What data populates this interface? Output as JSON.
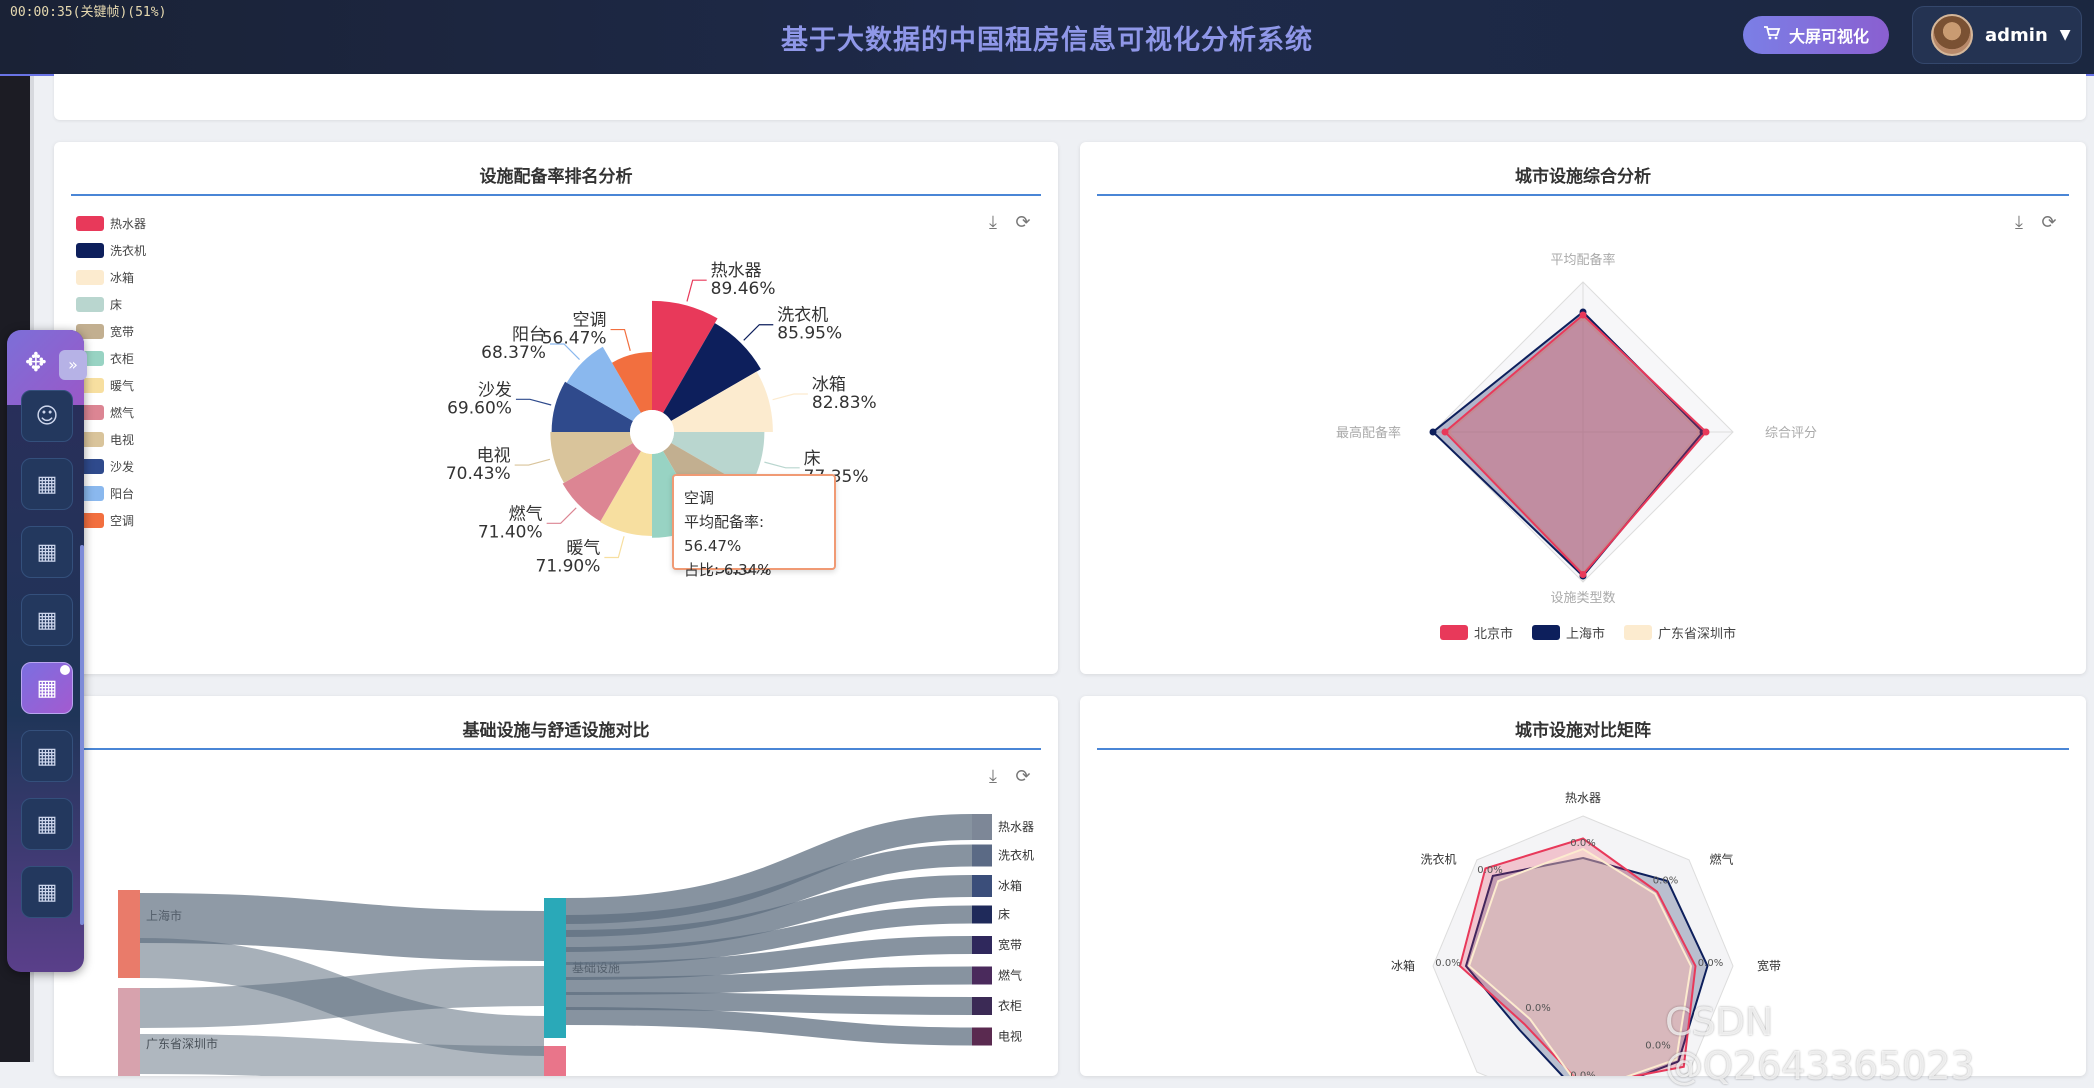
{
  "header": {
    "recording_status": "00:00:35(关键帧)(51%)",
    "title": "基于大数据的中国租房信息可视化分析系统",
    "bigscreen_button": "大屏可视化",
    "username": "admin"
  },
  "cards": {
    "facility_rank": {
      "title": "设施配备率排名分析"
    },
    "city_radar": {
      "title": "城市设施综合分析"
    },
    "basic_comfort": {
      "title": "基础设施与舒适设施对比"
    },
    "city_matrix": {
      "title": "城市设施对比矩阵"
    }
  },
  "tooltip": {
    "name": "空调",
    "avg_rate": "平均配备率: 56.47%",
    "share": "占比: 6.34%"
  },
  "chart_data": [
    {
      "type": "pie",
      "title": "设施配备率排名分析",
      "legend_position": "left",
      "slices": [
        {
          "name": "热水器",
          "value": 89.46,
          "label": "89.46%",
          "color": "#e8395a"
        },
        {
          "name": "洗衣机",
          "value": 85.95,
          "label": "85.95%",
          "color": "#0d1f5c"
        },
        {
          "name": "冰箱",
          "value": 82.83,
          "label": "82.83%",
          "color": "#fcebcf"
        },
        {
          "name": "床",
          "value": 77.35,
          "label": "77.35%",
          "color": "#b9d6cf"
        },
        {
          "name": "宽带",
          "value": 73.5,
          "label": "",
          "color": "#c2af90"
        },
        {
          "name": "衣柜",
          "value": 73.1,
          "label": "73.10%",
          "color": "#98d3c3"
        },
        {
          "name": "暖气",
          "value": 71.9,
          "label": "71.90%",
          "color": "#f7dfa0"
        },
        {
          "name": "燃气",
          "value": 71.4,
          "label": "71.40%",
          "color": "#dc8593"
        },
        {
          "name": "电视",
          "value": 70.43,
          "label": "70.43%",
          "color": "#d9c49b"
        },
        {
          "name": "沙发",
          "value": 69.6,
          "label": "69.60%",
          "color": "#2f4a8c"
        },
        {
          "name": "阳台",
          "value": 68.37,
          "label": "68.37%",
          "color": "#8ab8ee"
        },
        {
          "name": "空调",
          "value": 56.47,
          "label": "56.47%",
          "color": "#f26f3f"
        }
      ]
    },
    {
      "type": "radar",
      "title": "城市设施综合分析",
      "indicators": [
        "平均配备率",
        "综合评分",
        "设施类型数",
        "最高配备率"
      ],
      "series": [
        {
          "name": "北京市",
          "values": [
            0.78,
            0.82,
            0.95,
            0.92
          ],
          "color": "#e8395a"
        },
        {
          "name": "上海市",
          "values": [
            0.8,
            0.8,
            0.96,
            1.0
          ],
          "color": "#0d1f5c"
        },
        {
          "name": "广东省深圳市",
          "values": [
            0.76,
            0.78,
            0.94,
            0.9
          ],
          "color": "#fcebcf"
        }
      ],
      "legend_position": "bottom"
    },
    {
      "type": "sankey",
      "title": "基础设施与舒适设施对比",
      "sources": [
        "上海市",
        "广东省深圳市"
      ],
      "middle": [
        "基础设施"
      ],
      "targets": [
        "热水器",
        "洗衣机",
        "冰箱",
        "床",
        "宽带",
        "燃气",
        "衣柜",
        "电视"
      ]
    },
    {
      "type": "radar",
      "title": "城市设施对比矩阵",
      "indicators": [
        "热水器",
        "燃气",
        "宽带",
        "冰箱",
        "洗衣机"
      ],
      "value_labels": "0.0%"
    }
  ],
  "watermark": "CSDN @Q2643365023",
  "colors": {
    "accent": "#4a86d6",
    "header_bg": "#1e2a4a",
    "title": "#8f97e8"
  }
}
